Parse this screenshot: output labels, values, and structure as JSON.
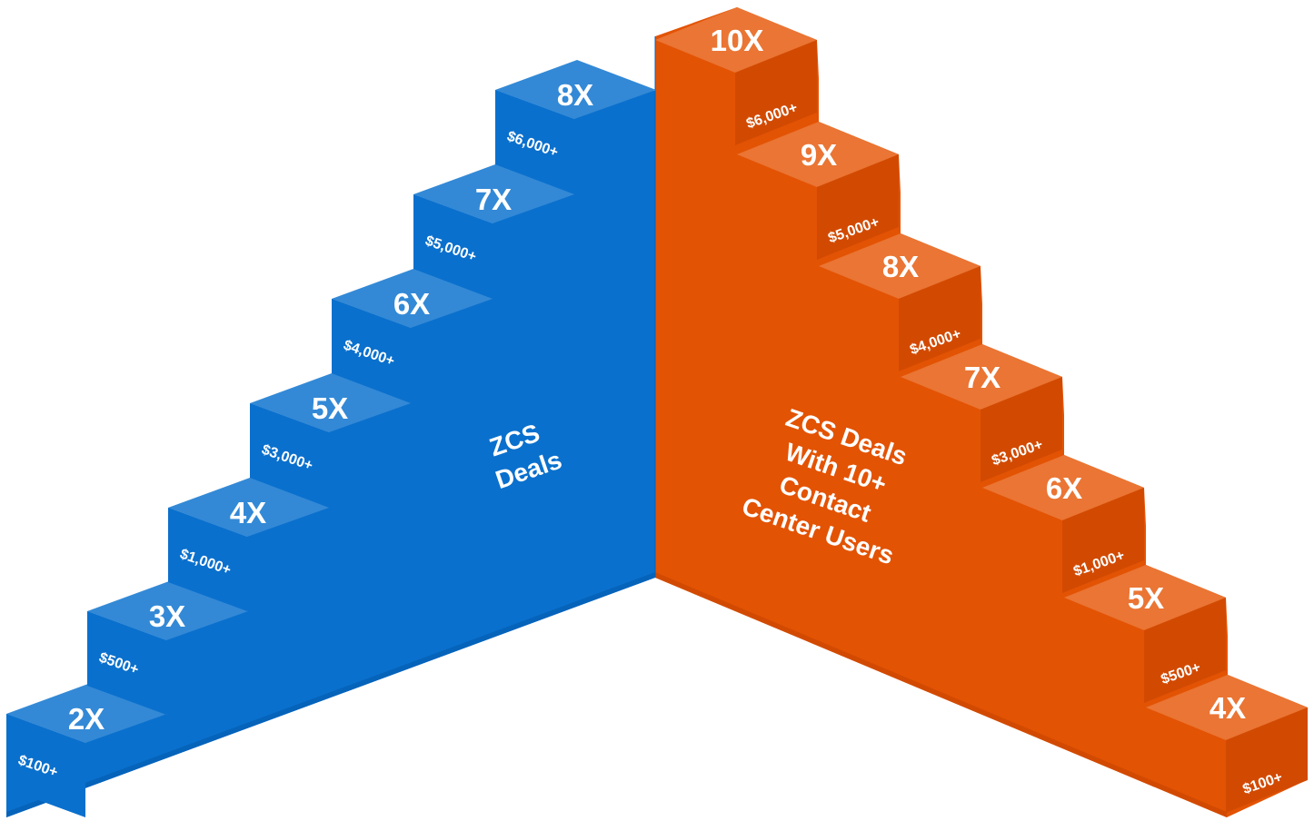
{
  "colors": {
    "blue_front": "#0a70cd",
    "blue_top": "#3389d6",
    "blue_side": "#0563ba",
    "orange_front": "#e35304",
    "orange_top": "#ea7534",
    "orange_side": "#d24a02"
  },
  "left_staircase": {
    "label_lines": [
      "ZCS",
      "Deals"
    ],
    "steps": [
      {
        "multiplier": "2X",
        "price": "$100+"
      },
      {
        "multiplier": "3X",
        "price": "$500+"
      },
      {
        "multiplier": "4X",
        "price": "$1,000+"
      },
      {
        "multiplier": "5X",
        "price": "$3,000+"
      },
      {
        "multiplier": "6X",
        "price": "$4,000+"
      },
      {
        "multiplier": "7X",
        "price": "$5,000+"
      },
      {
        "multiplier": "8X",
        "price": "$6,000+"
      }
    ]
  },
  "right_staircase": {
    "label_lines": [
      "ZCS Deals",
      "With 10+",
      "Contact",
      "Center Users"
    ],
    "steps": [
      {
        "multiplier": "10X",
        "price": "$6,000+"
      },
      {
        "multiplier": "9X",
        "price": "$5,000+"
      },
      {
        "multiplier": "8X",
        "price": "$4,000+"
      },
      {
        "multiplier": "7X",
        "price": "$3,000+"
      },
      {
        "multiplier": "6X",
        "price": "$1,000+"
      },
      {
        "multiplier": "5X",
        "price": "$500+"
      },
      {
        "multiplier": "4X",
        "price": "$100+"
      }
    ]
  }
}
